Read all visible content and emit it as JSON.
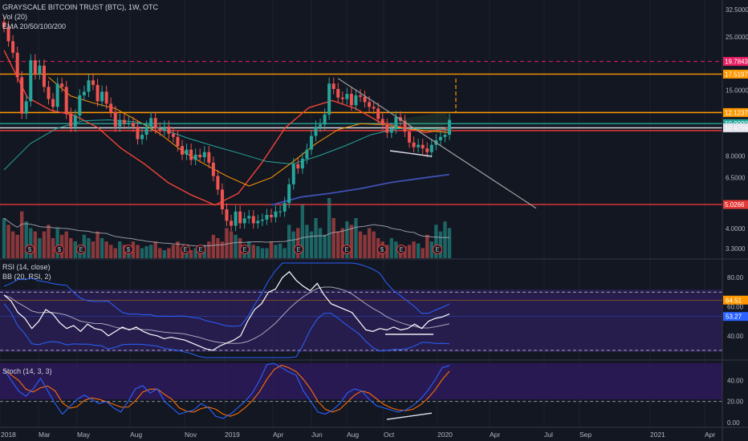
{
  "header": {
    "title": "GRAYSCALE BITCOIN TRUST (BTC), 1W, OTC",
    "volume_label": "Vol (20)",
    "ema_label": "EMA 20/50/100/200"
  },
  "panes": {
    "rsi_label": "RSI (14, close)",
    "bb_label": "BB (20, RSI, 2)",
    "stoch_label": "Stoch (14, 3, 3)"
  },
  "colors": {
    "background": "#131722",
    "up": "#26a69a",
    "down": "#ef5350",
    "orange_level": "#ff9800",
    "red_level": "#e53935",
    "dashed_level": "#e91e63",
    "ema20": "#f44336",
    "ema50": "#ff9800",
    "ema100": "#26a69a",
    "ema200": "#3f51b5",
    "rsi_band": "#2a1e55",
    "stoch_band": "#2e1a5c"
  },
  "chart_data": [
    {
      "type": "candlestick",
      "title": "GRAYSCALE BITCOIN TRUST (BTC), 1W, OTC",
      "scale": "log",
      "ylim": [
        3.1,
        33.5
      ],
      "price_ticks": [
        "32.5000",
        "25.0000",
        "19.7843",
        "17.5197",
        "15.0000",
        "12.1237",
        "10.9000",
        "10.4759",
        "8.0000",
        "6.5000",
        "5.0266",
        "4.0000",
        "3.3000"
      ],
      "x_ticks": [
        "2018",
        "Mar",
        "May",
        "Aug",
        "Nov",
        "2019",
        "Apr",
        "Jun",
        "Aug",
        "Oct",
        "2020",
        "Apr",
        "Jul",
        "Sep",
        "2021",
        "Apr"
      ],
      "horizontal_levels": [
        {
          "value": 19.7843,
          "label": "19.7843",
          "style": "dashed",
          "color": "#e91e63"
        },
        {
          "value": 17.5197,
          "label": "17.5197",
          "style": "solid",
          "color": "#ff9800"
        },
        {
          "value": 12.1237,
          "label": "12.1237",
          "style": "solid",
          "color": "#ff9800"
        },
        {
          "value": 10.9,
          "label": "10.9000",
          "style": "solid",
          "color": "#26a69a"
        },
        {
          "value": 10.4759,
          "label": "10.4759",
          "style": "solid",
          "color": "#e0e3eb"
        },
        {
          "value": 5.0266,
          "label": "5.0266",
          "style": "solid",
          "color": "#e53935"
        }
      ],
      "series": [
        {
          "name": "Close",
          "values": [
            27.5,
            24.0,
            21.5,
            17.0,
            12.0,
            13.5,
            20.0,
            17.5,
            19.0,
            15.5,
            13.8,
            12.8,
            16.0,
            15.5,
            12.0,
            10.6,
            11.8,
            14.3,
            14.8,
            16.5,
            15.8,
            13.5,
            14.8,
            13.2,
            12.2,
            10.6,
            11.3,
            10.9,
            11.0,
            10.6,
            9.4,
            9.8,
            10.6,
            11.5,
            10.4,
            10.2,
            10.6,
            9.9,
            9.6,
            8.8,
            8.1,
            8.5,
            7.7,
            8.1,
            7.9,
            8.3,
            7.5,
            6.6,
            5.8,
            4.8,
            4.3,
            4.1,
            4.7,
            4.2,
            4.4,
            4.5,
            4.2,
            4.3,
            4.35,
            4.55,
            4.45,
            4.7,
            4.7,
            5.1,
            6.1,
            7.4,
            7.1,
            7.8,
            8.5,
            9.7,
            10.6,
            10.8,
            11.9,
            16.0,
            15.2,
            14.0,
            13.8,
            14.5,
            13.0,
            14.3,
            14.1,
            13.4,
            12.8,
            12.6,
            11.4,
            10.8,
            10.0,
            10.4,
            11.6,
            11.2,
            10.1,
            9.1,
            8.7,
            8.9,
            8.6,
            8.3,
            8.9,
            9.3,
            9.6,
            9.8,
            11.3
          ]
        },
        {
          "name": "EMA 20",
          "values": [
            22.0,
            14.0,
            12.4,
            11.8,
            10.5,
            8.6,
            7.4,
            6.2,
            5.5,
            5.0,
            5.6,
            7.5,
            10.5,
            12.7,
            13.6,
            12.6,
            11.1,
            10.5,
            10.0,
            10.5
          ]
        },
        {
          "name": "EMA 50",
          "values": [
            17.0,
            14.2,
            13.3,
            12.6,
            11.2,
            9.9,
            8.4,
            7.4,
            6.6,
            6.0,
            6.5,
            7.6,
            9.0,
            10.3,
            10.9,
            10.8,
            10.4,
            10.2,
            10.0
          ]
        },
        {
          "name": "EMA 100",
          "values": [
            7.0,
            9.0,
            10.4,
            11.2,
            11.3,
            11.1,
            10.4,
            9.5,
            8.8,
            8.2,
            7.6,
            7.4,
            8.0,
            8.8,
            9.8,
            10.4,
            10.4,
            10.3
          ]
        },
        {
          "name": "EMA 200",
          "values": [
            5.0,
            5.4,
            5.6,
            5.85,
            6.2,
            6.45,
            6.7
          ]
        }
      ]
    },
    {
      "type": "bar",
      "title": "Vol (20)",
      "values": [
        60,
        50,
        40,
        35,
        70,
        55,
        45,
        40,
        30,
        40,
        50,
        30,
        45,
        35,
        40,
        30,
        25,
        20,
        35,
        30,
        25,
        40,
        30,
        25,
        20,
        15,
        25,
        20,
        15,
        25,
        20,
        15,
        18,
        20,
        25,
        15,
        12,
        15,
        20,
        25,
        15,
        20,
        12,
        15,
        18,
        20,
        25,
        35,
        30,
        25,
        45,
        40,
        35,
        30,
        20,
        25,
        20,
        18,
        15,
        15,
        25,
        20,
        22,
        15,
        50,
        40,
        45,
        80,
        50,
        40,
        60,
        45,
        35,
        90,
        60,
        40,
        45,
        55,
        50,
        60,
        40,
        35,
        45,
        40,
        30,
        25,
        20,
        30,
        25,
        20,
        18,
        20,
        25,
        22,
        15,
        35,
        25,
        50,
        40,
        55,
        45
      ]
    },
    {
      "type": "line",
      "title": "RSI (14, close)",
      "ylim": [
        25,
        90
      ],
      "y_ticks": [
        "80.00",
        "60.00",
        "40.00"
      ],
      "levels": [
        70,
        30
      ],
      "value_tags": [
        "64.51",
        "53.27"
      ],
      "series": [
        {
          "name": "RSI",
          "values": [
            68,
            64,
            56,
            52,
            45,
            50,
            58,
            55,
            49,
            45,
            47,
            43,
            48,
            45,
            44,
            40,
            43,
            46,
            44,
            46,
            43,
            41,
            40,
            38,
            39,
            38,
            37,
            35,
            33,
            31,
            30,
            33,
            35,
            37,
            40,
            50,
            58,
            62,
            70,
            72,
            80,
            84,
            78,
            74,
            71,
            76,
            68,
            62,
            60,
            58,
            56,
            50,
            44,
            43,
            45,
            44,
            46,
            44,
            45,
            48,
            45,
            50,
            52,
            53,
            55
          ]
        }
      ]
    },
    {
      "type": "line",
      "title": "Stoch (14, 3, 3)",
      "ylim": [
        -3,
        57
      ],
      "y_ticks": [
        "40.00",
        "20.00",
        "0.00"
      ],
      "levels": [
        80,
        20
      ],
      "series": [
        {
          "name": "%K",
          "values": [
            50,
            40,
            30,
            25,
            32,
            42,
            30,
            18,
            8,
            15,
            22,
            26,
            22,
            18,
            20,
            14,
            10,
            20,
            32,
            35,
            28,
            32,
            20,
            14,
            8,
            10,
            12,
            18,
            14,
            6,
            4,
            8,
            14,
            20,
            28,
            40,
            55,
            56,
            52,
            48,
            45,
            30,
            20,
            10,
            8,
            12,
            18,
            28,
            32,
            30,
            22,
            16,
            14,
            12,
            10,
            12,
            16,
            22,
            30,
            40,
            52,
            54
          ]
        }
      ]
    }
  ]
}
